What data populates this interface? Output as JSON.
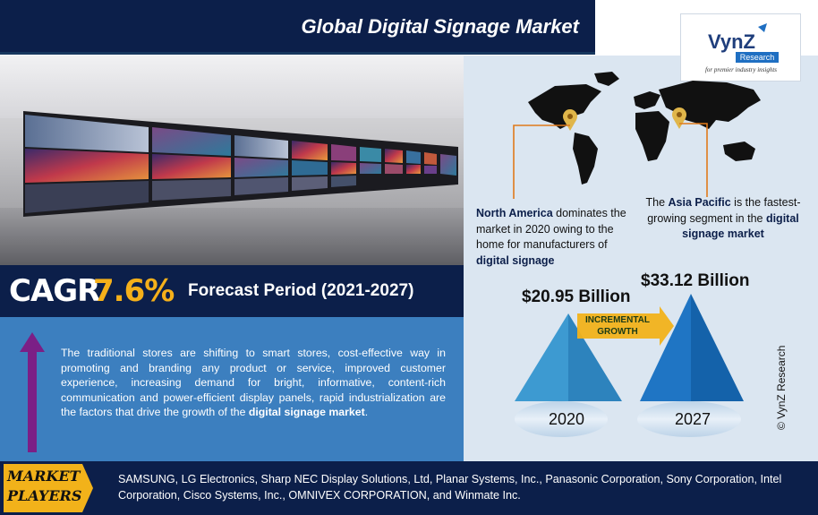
{
  "header": {
    "title": "Global Digital Signage Market"
  },
  "logo": {
    "brand": "VynZ",
    "sub": "Research",
    "tagline": "for premier industry insights"
  },
  "cagr": {
    "label": "CAGR",
    "value": "7.6%",
    "forecast": "Forecast Period (2021-2027)"
  },
  "description": {
    "text": "The traditional stores are shifting to smart stores, cost-effective way in promoting and branding any product or service, improved customer experience, increasing demand for bright, informative, content-rich communication and power-efficient display panels, rapid industrialization are the factors that drive the growth of the ",
    "bold": "digital signage market",
    "end": "."
  },
  "regions": {
    "na_bold": "North America",
    "na_text": " dominates the market in 2020 owing to the home for manufacturers of ",
    "na_bold2": "digital signage",
    "ap_pre": "The ",
    "ap_bold": "Asia Pacific",
    "ap_text": " is the fastest-growing segment in the ",
    "ap_bold2": "digital signage market"
  },
  "market_size": {
    "value_2020": "$20.95 Billion",
    "value_2027": "$33.12 Billion",
    "year_2020": "2020",
    "year_2027": "2027",
    "incremental_1": "INCREMENTAL",
    "incremental_2": "GROWTH"
  },
  "copyright": "© VynZ Research",
  "footer": {
    "label_1": "MARKET",
    "label_2": "PLAYERS",
    "players": "SAMSUNG, LG Electronics, Sharp NEC Display Solutions, Ltd, Planar Systems, Inc., Panasonic Corporation, Sony Corporation, Intel Corporation, Cisco Systems, Inc., OMNIVEX CORPORATION, and Winmate Inc."
  },
  "colors": {
    "navy": "#0c1f4a",
    "accent_gold": "#f5b01a",
    "panel_blue": "#3c7fbf",
    "arrow_purple": "#7b1f86",
    "pyramid_light": "#3d9ad1",
    "pyramid_dark": "#1769b8"
  },
  "icons": [
    "location-pin-icon",
    "up-arrow-icon",
    "right-arrow-icon"
  ]
}
